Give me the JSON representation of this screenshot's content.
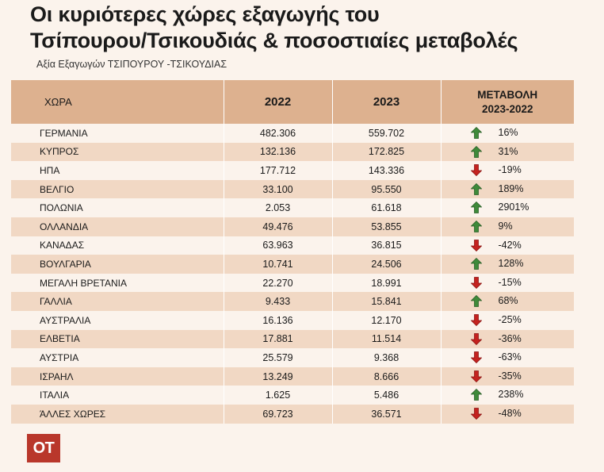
{
  "title_line1": "Οι κυριότερες χώρες εξαγωγής του",
  "title_line2": "Τσίπουρου/Τσικουδιάς & ποσοστιαίες μεταβολές",
  "subtitle": "Αξία Εξαγωγών ΤΣΙΠΟΥΡΟΥ -ΤΣΙΚΟΥΔΙΑΣ",
  "headers": {
    "country": "ΧΩΡΑ",
    "y2022": "2022",
    "y2023": "2023",
    "change_line1": "ΜΕΤΑΒΟΛΗ",
    "change_line2": "2023-2022"
  },
  "logo_text": "OT",
  "colors": {
    "up": "#3f8a3a",
    "down": "#c4221f",
    "header": "#ddb18f",
    "stripe": "#f1d8c4"
  },
  "chart_data": {
    "type": "table",
    "columns": [
      "ΧΩΡΑ",
      "2022",
      "2023",
      "ΜΕΤΑΒΟΛΗ 2023-2022"
    ],
    "rows": [
      {
        "country": "ΓΕΡΜΑΝΙΑ",
        "v2022": "482.306",
        "v2023": "559.702",
        "change": "16%",
        "direction": "up"
      },
      {
        "country": "ΚΥΠΡΟΣ",
        "v2022": "132.136",
        "v2023": "172.825",
        "change": "31%",
        "direction": "up"
      },
      {
        "country": "ΗΠΑ",
        "v2022": "177.712",
        "v2023": "143.336",
        "change": "-19%",
        "direction": "down"
      },
      {
        "country": "ΒΕΛΓΙΟ",
        "v2022": "33.100",
        "v2023": "95.550",
        "change": "189%",
        "direction": "up"
      },
      {
        "country": "ΠΟΛΩΝΙΑ",
        "v2022": "2.053",
        "v2023": "61.618",
        "change": "2901%",
        "direction": "up"
      },
      {
        "country": "ΟΛΛΑΝΔΙΑ",
        "v2022": "49.476",
        "v2023": "53.855",
        "change": "9%",
        "direction": "up"
      },
      {
        "country": "ΚΑΝΑΔΑΣ",
        "v2022": "63.963",
        "v2023": "36.815",
        "change": "-42%",
        "direction": "down"
      },
      {
        "country": "ΒΟΥΛΓΑΡΙΑ",
        "v2022": "10.741",
        "v2023": "24.506",
        "change": "128%",
        "direction": "up"
      },
      {
        "country": "ΜΕΓΑΛΗ ΒΡΕΤΑΝΙΑ",
        "v2022": "22.270",
        "v2023": "18.991",
        "change": "-15%",
        "direction": "down"
      },
      {
        "country": "ΓΑΛΛΙΑ",
        "v2022": "9.433",
        "v2023": "15.841",
        "change": "68%",
        "direction": "up"
      },
      {
        "country": "ΑΥΣΤΡΑΛΙΑ",
        "v2022": "16.136",
        "v2023": "12.170",
        "change": "-25%",
        "direction": "down"
      },
      {
        "country": "ΕΛΒΕΤΙΑ",
        "v2022": "17.881",
        "v2023": "11.514",
        "change": "-36%",
        "direction": "down"
      },
      {
        "country": "ΑΥΣΤΡΙΑ",
        "v2022": "25.579",
        "v2023": "9.368",
        "change": "-63%",
        "direction": "down"
      },
      {
        "country": "ΙΣΡΑΗΛ",
        "v2022": "13.249",
        "v2023": "8.666",
        "change": "-35%",
        "direction": "down"
      },
      {
        "country": "ΙΤΑΛΙΑ",
        "v2022": "1.625",
        "v2023": "5.486",
        "change": "238%",
        "direction": "up"
      },
      {
        "country": "ΆΛΛΕΣ ΧΩΡΕΣ",
        "v2022": "69.723",
        "v2023": "36.571",
        "change": "-48%",
        "direction": "down"
      }
    ]
  }
}
